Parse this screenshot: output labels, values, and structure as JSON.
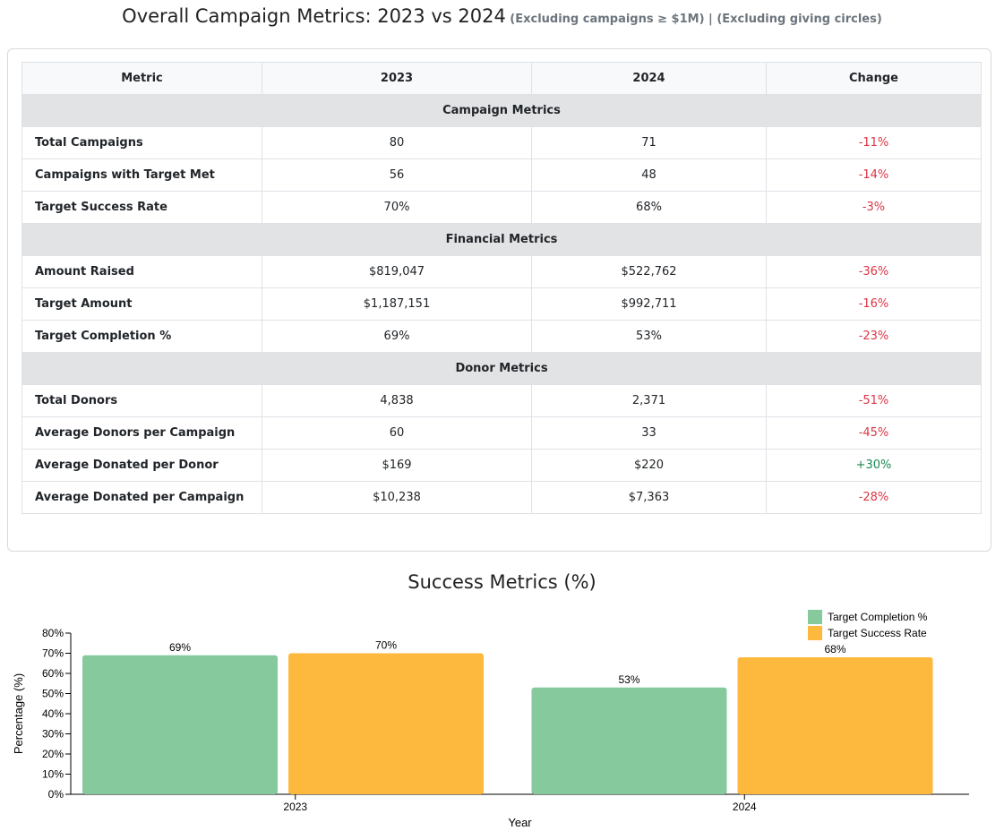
{
  "header": {
    "title": "Overall Campaign Metrics: 2023 vs 2024",
    "subtitle": "(Excluding campaigns ≥ $1M) | (Excluding giving circles)"
  },
  "table": {
    "columns": [
      "Metric",
      "2023",
      "2024",
      "Change"
    ],
    "sections": [
      {
        "title": "Campaign Metrics",
        "rows": [
          {
            "metric": "Total Campaigns",
            "y2023": "80",
            "y2024": "71",
            "change": "-11%",
            "trend": "neg"
          },
          {
            "metric": "Campaigns with Target Met",
            "y2023": "56",
            "y2024": "48",
            "change": "-14%",
            "trend": "neg"
          },
          {
            "metric": "Target Success Rate",
            "y2023": "70%",
            "y2024": "68%",
            "change": "-3%",
            "trend": "neg"
          }
        ]
      },
      {
        "title": "Financial Metrics",
        "rows": [
          {
            "metric": "Amount Raised",
            "y2023": "$819,047",
            "y2024": "$522,762",
            "change": "-36%",
            "trend": "neg"
          },
          {
            "metric": "Target Amount",
            "y2023": "$1,187,151",
            "y2024": "$992,711",
            "change": "-16%",
            "trend": "neg"
          },
          {
            "metric": "Target Completion %",
            "y2023": "69%",
            "y2024": "53%",
            "change": "-23%",
            "trend": "neg"
          }
        ]
      },
      {
        "title": "Donor Metrics",
        "rows": [
          {
            "metric": "Total Donors",
            "y2023": "4,838",
            "y2024": "2,371",
            "change": "-51%",
            "trend": "neg"
          },
          {
            "metric": "Average Donors per Campaign",
            "y2023": "60",
            "y2024": "33",
            "change": "-45%",
            "trend": "neg"
          },
          {
            "metric": "Average Donated per Donor",
            "y2023": "$169",
            "y2024": "$220",
            "change": "+30%",
            "trend": "pos"
          },
          {
            "metric": "Average Donated per Campaign",
            "y2023": "$10,238",
            "y2024": "$7,363",
            "change": "-28%",
            "trend": "neg"
          }
        ]
      }
    ]
  },
  "colors": {
    "target_completion": "#85c99c",
    "target_success": "#fdb93d",
    "negative": "#dc3545",
    "positive": "#198754"
  },
  "chart_data": {
    "type": "bar",
    "title": "Success Metrics (%)",
    "xlabel": "Year",
    "ylabel": "Percentage (%)",
    "categories": [
      "2023",
      "2024"
    ],
    "series": [
      {
        "name": "Target Completion %",
        "values": [
          69,
          53
        ],
        "labels": [
          "69%",
          "53%"
        ]
      },
      {
        "name": "Target Success Rate",
        "values": [
          70,
          68
        ],
        "labels": [
          "70%",
          "68%"
        ]
      }
    ],
    "ylim": [
      0,
      80
    ],
    "yticks": [
      0,
      10,
      20,
      30,
      40,
      50,
      60,
      70,
      80
    ],
    "ytick_labels": [
      "0%",
      "10%",
      "20%",
      "30%",
      "40%",
      "50%",
      "60%",
      "70%",
      "80%"
    ],
    "legend_position": "top-right",
    "grid": false
  }
}
